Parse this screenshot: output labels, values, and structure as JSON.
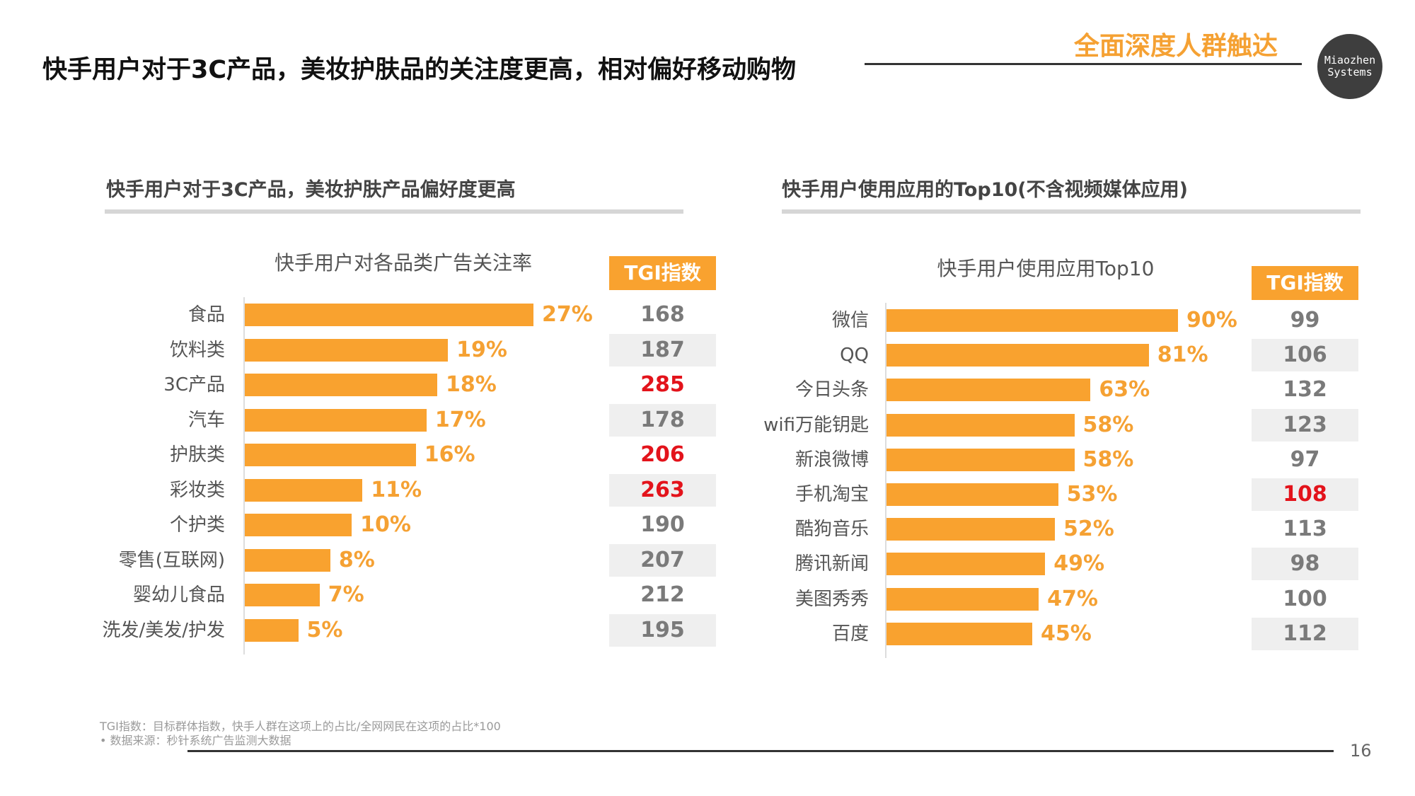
{
  "header": {
    "title": "快手用户对于3C产品，美妆护肤品的关注度更高，相对偏好移动购物",
    "tagline": "全面深度人群触达",
    "logo_text": [
      "Miaozhen",
      "Systems"
    ]
  },
  "left_section": {
    "heading": "快手用户对于3C产品，美妆护肤产品偏好度更高"
  },
  "right_section": {
    "heading": "快手用户使用应用的Top10(不含视频媒体应用)"
  },
  "colors": {
    "bar": "#F9A22F",
    "value_text": "#F5A133",
    "highlight": "#E3131B",
    "tgi_text": "#7a7a7a"
  },
  "chart_data": [
    {
      "type": "bar",
      "orientation": "horizontal",
      "title": "快手用户对各品类广告关注率",
      "categories": [
        "食品",
        "饮料类",
        "3C产品",
        "汽车",
        "护肤类",
        "彩妆类",
        "个护类",
        "零售(互联网)",
        "婴幼儿食品",
        "洗发/美发/护发"
      ],
      "values": [
        27,
        19,
        18,
        17,
        16,
        11,
        10,
        8,
        7,
        5
      ],
      "value_labels": [
        "27%",
        "19%",
        "18%",
        "17%",
        "16%",
        "11%",
        "10%",
        "8%",
        "7%",
        "5%"
      ],
      "unit": "%",
      "xlim": [
        0,
        27
      ],
      "tgi_header": "TGI指数",
      "tgi": [
        168,
        187,
        285,
        178,
        206,
        263,
        190,
        207,
        212,
        195
      ],
      "tgi_highlight": [
        false,
        false,
        true,
        false,
        true,
        true,
        false,
        false,
        false,
        false
      ]
    },
    {
      "type": "bar",
      "orientation": "horizontal",
      "title": "快手用户使用应用Top10",
      "categories": [
        "微信",
        "QQ",
        "今日头条",
        "wifi万能钥匙",
        "新浪微博",
        "手机淘宝",
        "酷狗音乐",
        "腾讯新闻",
        "美图秀秀",
        "百度"
      ],
      "values": [
        90,
        81,
        63,
        58,
        58,
        53,
        52,
        49,
        47,
        45
      ],
      "value_labels": [
        "90%",
        "81%",
        "63%",
        "58%",
        "58%",
        "53%",
        "52%",
        "49%",
        "47%",
        "45%"
      ],
      "unit": "%",
      "xlim": [
        0,
        90
      ],
      "tgi_header": "TGI指数",
      "tgi": [
        99,
        106,
        132,
        123,
        97,
        108,
        113,
        98,
        100,
        112
      ],
      "tgi_highlight": [
        false,
        false,
        false,
        false,
        false,
        true,
        false,
        false,
        false,
        false
      ]
    }
  ],
  "footer": {
    "note": "TGI指数：目标群体指数，快手人群在这项上的占比/全网网民在这项的占比*100",
    "source": "•    数据来源：秒针系统广告监测大数据",
    "page_number": "16"
  }
}
